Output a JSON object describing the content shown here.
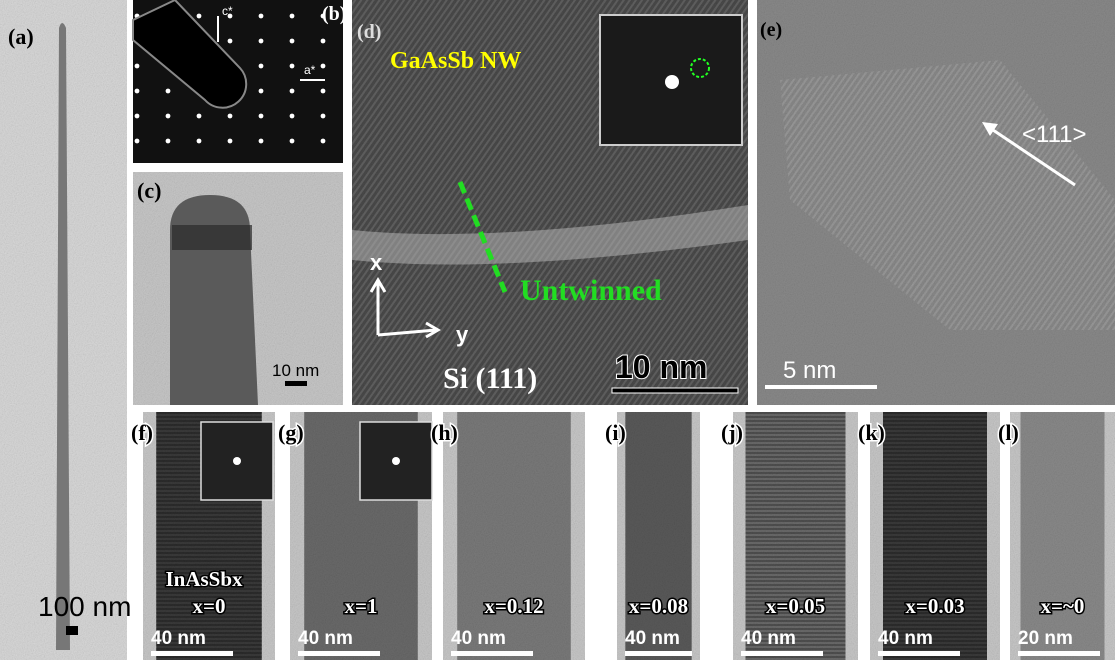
{
  "panels": [
    {
      "label": "(a)",
      "scale_bar": "100 nm"
    },
    {
      "label": "(b)",
      "axes": [
        "c*",
        "a*"
      ]
    },
    {
      "label": "(c)",
      "scale_bar": "10 nm"
    },
    {
      "label": "(d)",
      "title": "GaAsSb NW",
      "annotation": "Untwinned",
      "axes": [
        "x",
        "y"
      ],
      "substrate": "Si (111)",
      "scale_bar": "10 nm"
    },
    {
      "label": "(e)",
      "direction": "<111>",
      "scale_bar": "5 nm"
    },
    {
      "label": "(f)",
      "material": "InAsSbx",
      "composition": "x=0",
      "scale_bar": "40 nm"
    },
    {
      "label": "(g)",
      "composition": "x=1",
      "scale_bar": "40 nm"
    },
    {
      "label": "(h)",
      "composition": "x=0.12",
      "scale_bar": "40 nm"
    },
    {
      "label": "(i)",
      "composition": "x=0.08",
      "scale_bar": "40 nm"
    },
    {
      "label": "(j)",
      "composition": "x=0.05",
      "scale_bar": "40 nm"
    },
    {
      "label": "(k)",
      "composition": "x=0.03",
      "scale_bar": "40 nm"
    },
    {
      "label": "(l)",
      "composition": "x=~0",
      "scale_bar": "20 nm"
    }
  ]
}
